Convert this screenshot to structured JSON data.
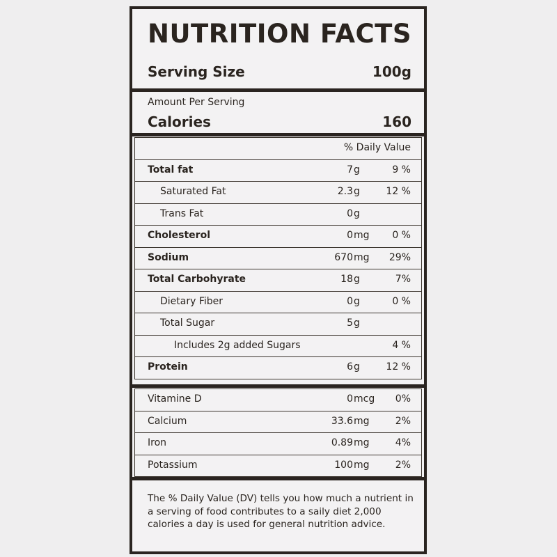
{
  "title": "NUTRITION FACTS",
  "serving_size": {
    "label": "Serving Size",
    "value": "100g"
  },
  "amount_per_serving": "Amount Per Serving",
  "calories": {
    "label": "Calories",
    "value": "160"
  },
  "daily_value_header": "% Daily Value",
  "nutrients": [
    {
      "name": "Total fat",
      "amount": "7",
      "unit": "g",
      "dv": "9 %"
    },
    {
      "name": "Saturated Fat",
      "amount": "2.3",
      "unit": "g",
      "dv": "12 %"
    },
    {
      "name": "Trans Fat",
      "amount": "0",
      "unit": "g",
      "dv": ""
    },
    {
      "name": "Cholesterol",
      "amount": "0",
      "unit": "mg",
      "dv": "0 %"
    },
    {
      "name": "Sodium",
      "amount": "670",
      "unit": "mg",
      "dv": "29%"
    },
    {
      "name": "Total Carbohyrate",
      "amount": "18",
      "unit": "g",
      "dv": "7%"
    },
    {
      "name": "Dietary Fiber",
      "amount": "0",
      "unit": "g",
      "dv": "0 %"
    },
    {
      "name": "Total Sugar",
      "amount": "5",
      "unit": "g",
      "dv": ""
    },
    {
      "name": "Includes 2g added Sugars",
      "amount": "",
      "unit": "",
      "dv": "4 %"
    },
    {
      "name": "Protein",
      "amount": "6",
      "unit": "g",
      "dv": "12 %"
    }
  ],
  "vitamins": [
    {
      "name": "Vitamine D",
      "amount": "0",
      "unit": "mcg",
      "dv": "0%"
    },
    {
      "name": "Calcium",
      "amount": "33.6",
      "unit": "mg",
      "dv": "2%"
    },
    {
      "name": "Iron",
      "amount": "0.89",
      "unit": "mg",
      "dv": "4%"
    },
    {
      "name": "Potassium",
      "amount": "100",
      "unit": "mg",
      "dv": "2%"
    }
  ],
  "footnote": "The % Daily Value (DV) tells you how much a nutrient in a serving of food contributes to a saily diet 2,000 calories a day is used for general nutrition advice."
}
